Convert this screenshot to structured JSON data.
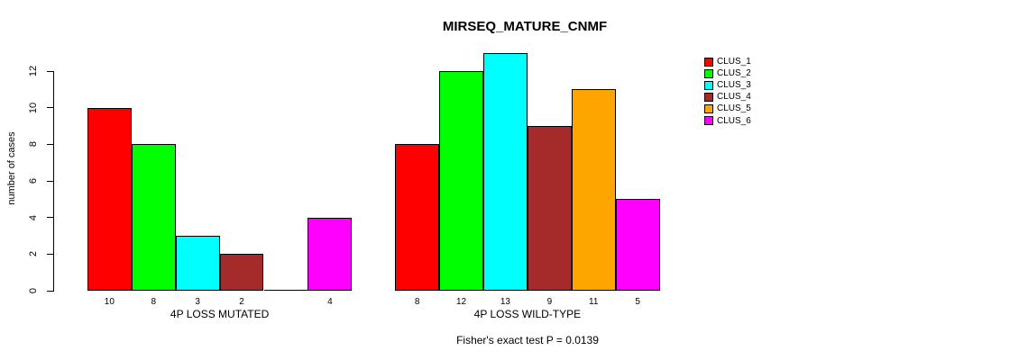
{
  "chart_data": {
    "type": "bar",
    "title": "MIRSEQ_MATURE_CNMF",
    "ylabel": "number of cases",
    "xlabel": "",
    "ylim": [
      0,
      13
    ],
    "yticks": [
      0,
      2,
      4,
      6,
      8,
      10,
      12
    ],
    "grid": false,
    "legend_position": "right",
    "categories": [
      "4P LOSS MUTATED",
      "4P LOSS WILD-TYPE"
    ],
    "series": [
      {
        "name": "CLUS_1",
        "color": "#FF0000",
        "values": [
          10,
          8
        ]
      },
      {
        "name": "CLUS_2",
        "color": "#00FF00",
        "values": [
          8,
          12
        ]
      },
      {
        "name": "CLUS_3",
        "color": "#00FFFF",
        "values": [
          3,
          13
        ]
      },
      {
        "name": "CLUS_4",
        "color": "#A52A2A",
        "values": [
          2,
          9
        ]
      },
      {
        "name": "CLUS_5",
        "color": "#FFA500",
        "values": [
          0,
          11
        ]
      },
      {
        "name": "CLUS_6",
        "color": "#FF00FF",
        "values": [
          4,
          5
        ]
      }
    ],
    "bar_value_labels": [
      [
        "10",
        "8",
        "3",
        "2",
        "",
        "4"
      ],
      [
        "8",
        "12",
        "13",
        "9",
        "11",
        "5"
      ]
    ],
    "footnote": "Fisher's exact test P = 0.0139"
  }
}
